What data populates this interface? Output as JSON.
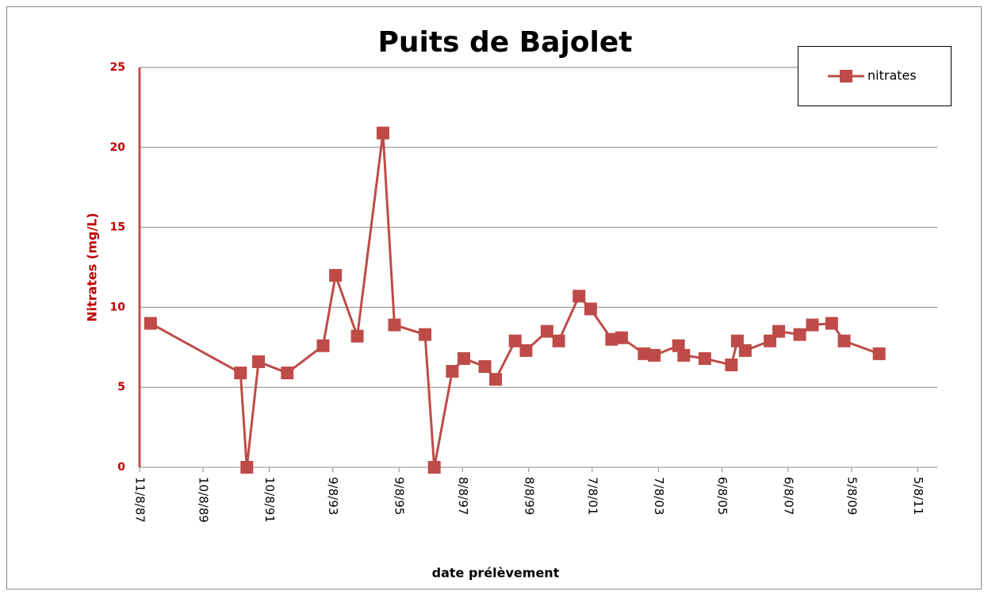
{
  "chart_data": {
    "type": "line",
    "title": "Puits de Bajolet",
    "x_label": "date prélèvement",
    "y_label": "Nitrates (mg/L)",
    "x": [
      "1988-03-08",
      "1990-11-25",
      "1991-02-03",
      "1991-06-12",
      "1992-04-24",
      "1993-05-24",
      "1993-10-08",
      "1994-06-05",
      "1995-03-15",
      "1995-07-20",
      "1996-06-21",
      "1996-10-01",
      "1997-04-17",
      "1997-08-23",
      "1998-04-12",
      "1998-08-08",
      "1999-03-12",
      "1999-07-10",
      "2000-02-26",
      "2000-07-04",
      "2001-02-13",
      "2001-06-21",
      "2002-02-08",
      "2002-05-28",
      "2003-02-01",
      "2003-05-24",
      "2004-02-15",
      "2004-04-13",
      "2004-12-01",
      "2005-09-20",
      "2005-11-25",
      "2006-02-20",
      "2006-11-20",
      "2007-02-24",
      "2007-10-14",
      "2008-03-01",
      "2008-09-30",
      "2009-02-14",
      "2010-03-07"
    ],
    "series": [
      {
        "name": "nitrates",
        "color": "#be4b48",
        "values": [
          9.0,
          5.9,
          0,
          6.6,
          5.9,
          7.6,
          12.0,
          8.2,
          20.9,
          8.9,
          8.3,
          0,
          6.0,
          6.8,
          6.3,
          5.5,
          7.9,
          7.3,
          8.5,
          7.9,
          10.7,
          9.9,
          8.0,
          8.1,
          7.1,
          7.0,
          7.6,
          7.0,
          6.8,
          6.4,
          7.9,
          7.3,
          7.9,
          8.5,
          8.3,
          8.9,
          9.0,
          7.9,
          7.1
        ]
      }
    ],
    "xlim": [
      "1987-11-08",
      "2011-12-08"
    ],
    "xticks": [
      {
        "value": "1987-11-08",
        "label": "11/8/87"
      },
      {
        "value": "1989-10-08",
        "label": "10/8/89"
      },
      {
        "value": "1991-10-08",
        "label": "10/8/91"
      },
      {
        "value": "1993-09-08",
        "label": "9/8/93"
      },
      {
        "value": "1995-09-08",
        "label": "9/8/95"
      },
      {
        "value": "1997-08-08",
        "label": "8/8/97"
      },
      {
        "value": "1999-08-08",
        "label": "8/8/99"
      },
      {
        "value": "2001-07-08",
        "label": "7/8/01"
      },
      {
        "value": "2003-07-08",
        "label": "7/8/03"
      },
      {
        "value": "2005-06-08",
        "label": "6/8/05"
      },
      {
        "value": "2007-06-08",
        "label": "6/8/07"
      },
      {
        "value": "2009-05-08",
        "label": "5/8/09"
      },
      {
        "value": "2011-05-08",
        "label": "5/8/11"
      }
    ],
    "ylim": [
      0,
      25
    ],
    "yticks": [
      0,
      5,
      10,
      15,
      20,
      25
    ],
    "grid": true,
    "legend": "top-right"
  }
}
